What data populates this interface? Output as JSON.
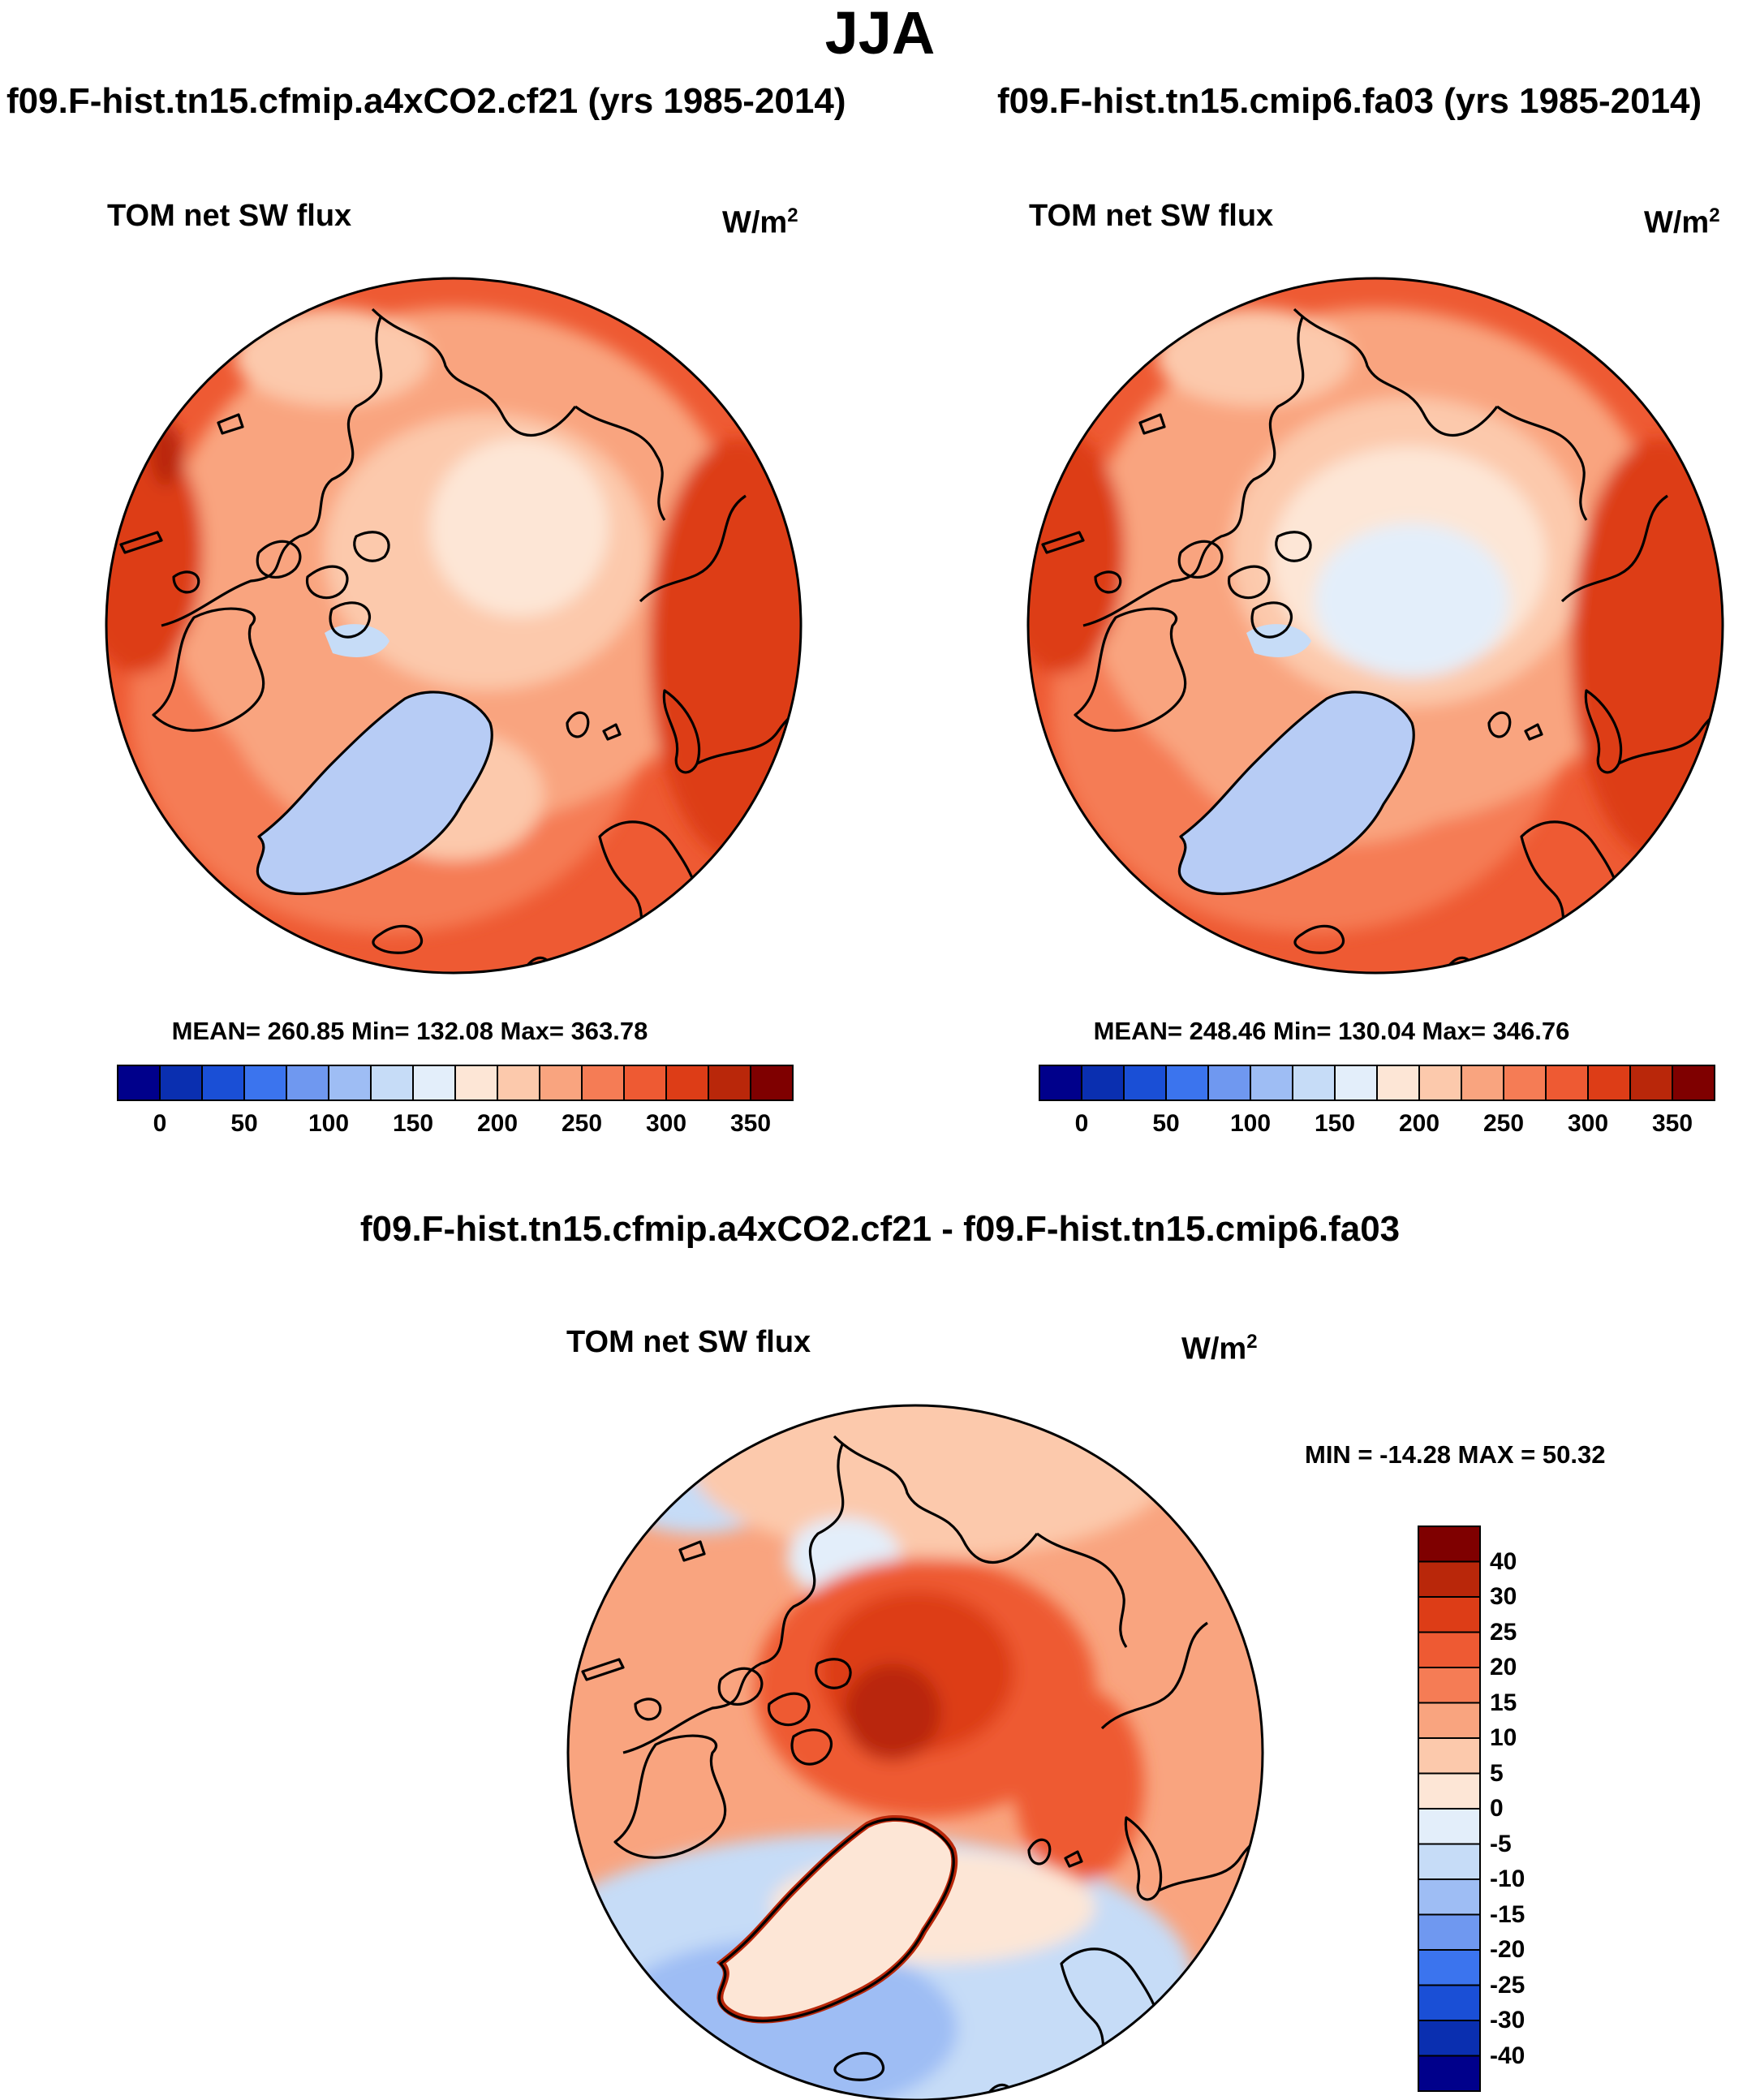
{
  "page_title": "JJA",
  "panels": {
    "left": {
      "run_title": "f09.F-hist.tn15.cfmip.a4xCO2.cf21 (yrs 1985-2014)",
      "variable": "TOM net SW flux",
      "units": "W/m",
      "units_exp": "2",
      "stats": "MEAN= 260.85  Min= 132.08  Max= 363.78"
    },
    "right": {
      "run_title": "f09.F-hist.tn15.cmip6.fa03 (yrs 1985-2014)",
      "variable": "TOM net SW flux",
      "units": "W/m",
      "units_exp": "2",
      "stats": "MEAN= 248.46  Min= 130.04  Max= 346.76"
    },
    "diff": {
      "run_title": "f09.F-hist.tn15.cfmip.a4xCO2.cf21 - f09.F-hist.tn15.cmip6.fa03",
      "variable": "TOM net SW flux",
      "units": "W/m",
      "units_exp": "2",
      "stats": "MIN = -14.28 MAX =  50.32"
    }
  },
  "chart_data": [
    {
      "type": "heatmap",
      "projection": "north polar stereographic",
      "title": "f09.F-hist.tn15.cfmip.a4xCO2.cf21 (yrs 1985-2014)",
      "variable": "TOM net SW flux",
      "units": "W/m2",
      "mean": 260.85,
      "min": 132.08,
      "max": 363.78,
      "colorbar": {
        "orientation": "horizontal",
        "levels": [
          -25,
          0,
          25,
          50,
          75,
          100,
          125,
          150,
          175,
          200,
          225,
          250,
          275,
          300,
          325,
          350
        ],
        "tick_labels": [
          "0",
          "50",
          "100",
          "150",
          "200",
          "250",
          "300",
          "350"
        ],
        "colors": [
          "#00008b",
          "#0a2fb0",
          "#1a4fd6",
          "#3b74ee",
          "#6f98f0",
          "#9ebdf4",
          "#c6dcf7",
          "#e3eefa",
          "#fde6d6",
          "#fcc9ac",
          "#f9a47f",
          "#f57c55",
          "#ee5a33",
          "#dd3d17",
          "#b9270a",
          "#7f0000"
        ]
      },
      "regions": {
        "arctic_ocean_center": 200,
        "greenland": 150,
        "north_atlantic": 225,
        "subtropical_pacific": 300,
        "eurasia_south": 300
      }
    },
    {
      "type": "heatmap",
      "projection": "north polar stereographic",
      "title": "f09.F-hist.tn15.cmip6.fa03 (yrs 1985-2014)",
      "variable": "TOM net SW flux",
      "units": "W/m2",
      "mean": 248.46,
      "min": 130.04,
      "max": 346.76,
      "colorbar": {
        "orientation": "horizontal",
        "levels": [
          -25,
          0,
          25,
          50,
          75,
          100,
          125,
          150,
          175,
          200,
          225,
          250,
          275,
          300,
          325,
          350
        ],
        "tick_labels": [
          "0",
          "50",
          "100",
          "150",
          "200",
          "250",
          "300",
          "350"
        ],
        "colors": [
          "#00008b",
          "#0a2fb0",
          "#1a4fd6",
          "#3b74ee",
          "#6f98f0",
          "#9ebdf4",
          "#c6dcf7",
          "#e3eefa",
          "#fde6d6",
          "#fcc9ac",
          "#f9a47f",
          "#f57c55",
          "#ee5a33",
          "#dd3d17",
          "#b9270a",
          "#7f0000"
        ]
      },
      "regions": {
        "arctic_ocean_center": 175,
        "greenland": 150,
        "north_atlantic": 225,
        "subtropical_pacific": 300,
        "eurasia_south": 300
      }
    },
    {
      "type": "heatmap",
      "projection": "north polar stereographic",
      "title": "f09.F-hist.tn15.cfmip.a4xCO2.cf21 - f09.F-hist.tn15.cmip6.fa03",
      "variable": "TOM net SW flux",
      "units": "W/m2",
      "min": -14.28,
      "max": 50.32,
      "colorbar": {
        "orientation": "vertical",
        "tick_labels": [
          "40",
          "30",
          "25",
          "20",
          "15",
          "10",
          "5",
          "0",
          "-5",
          "-10",
          "-15",
          "-20",
          "-25",
          "-30",
          "-40"
        ],
        "colors": [
          "#7f0000",
          "#b9270a",
          "#dd3d17",
          "#ee5a33",
          "#f57c55",
          "#f9a47f",
          "#fcc9ac",
          "#fde6d6",
          "#e3eefa",
          "#c6dcf7",
          "#9ebdf4",
          "#6f98f0",
          "#3b74ee",
          "#1a4fd6",
          "#0a2fb0",
          "#00008b"
        ]
      },
      "regions": {
        "arctic_ocean_center": 30,
        "greenland": 0,
        "north_atlantic": -5,
        "north_pacific": -5,
        "eurasia": 15
      }
    }
  ]
}
